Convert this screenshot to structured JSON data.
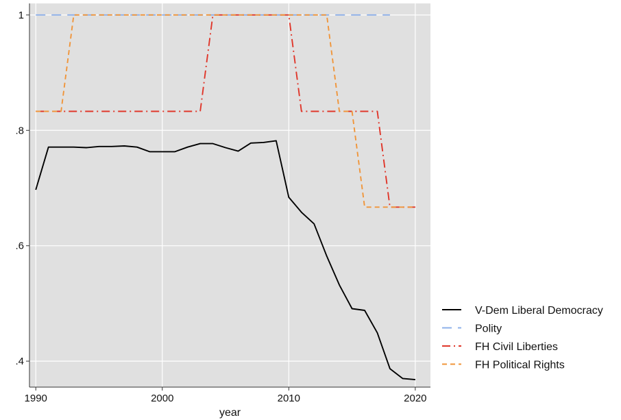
{
  "chart_data": {
    "type": "line",
    "xlabel": "year",
    "ylabel": "",
    "title": "",
    "xlim": [
      1989.5,
      2021.2
    ],
    "ylim": [
      0.355,
      1.02
    ],
    "x_ticks": [
      1990,
      2000,
      2010,
      2020
    ],
    "x_tick_labels": [
      "1990",
      "2000",
      "2010",
      "2020"
    ],
    "y_ticks": [
      0.4,
      0.6,
      0.8,
      1.0
    ],
    "y_tick_labels": [
      ".4",
      ".6",
      ".8",
      "1"
    ],
    "grid": true,
    "legend_position": "right",
    "background": "#e0e0e0",
    "series": [
      {
        "name": "V-Dem Liberal Democracy",
        "color": "#000000",
        "dash": "solid",
        "x": [
          1990,
          1991,
          1992,
          1993,
          1994,
          1995,
          1996,
          1997,
          1998,
          1999,
          2000,
          2001,
          2002,
          2003,
          2004,
          2005,
          2006,
          2007,
          2008,
          2009,
          2010,
          2011,
          2012,
          2013,
          2014,
          2015,
          2016,
          2017,
          2018,
          2019,
          2020
        ],
        "values": [
          0.697,
          0.771,
          0.771,
          0.771,
          0.77,
          0.772,
          0.772,
          0.773,
          0.771,
          0.763,
          0.763,
          0.763,
          0.771,
          0.777,
          0.777,
          0.77,
          0.764,
          0.778,
          0.779,
          0.782,
          0.684,
          0.658,
          0.638,
          0.582,
          0.532,
          0.491,
          0.488,
          0.449,
          0.387,
          0.37,
          0.368
        ]
      },
      {
        "name": "Polity",
        "color": "#8eb0ea",
        "dash": "long",
        "x": [
          1990,
          2018
        ],
        "values": [
          1.0,
          1.0
        ]
      },
      {
        "name": "FH Civil Liberties",
        "color": "#e0362a",
        "dash": "dashdot",
        "x": [
          1990,
          2003,
          2004,
          2010,
          2011,
          2017,
          2018,
          2020
        ],
        "values": [
          0.833,
          0.833,
          1.0,
          1.0,
          0.833,
          0.833,
          0.667,
          0.667
        ]
      },
      {
        "name": "FH Political Rights",
        "color": "#f0953a",
        "dash": "dashed",
        "x": [
          1990,
          1992,
          1993,
          2013,
          2014,
          2015,
          2016,
          2020
        ],
        "values": [
          0.833,
          0.833,
          1.0,
          1.0,
          0.833,
          0.833,
          0.667,
          0.667
        ]
      }
    ]
  }
}
